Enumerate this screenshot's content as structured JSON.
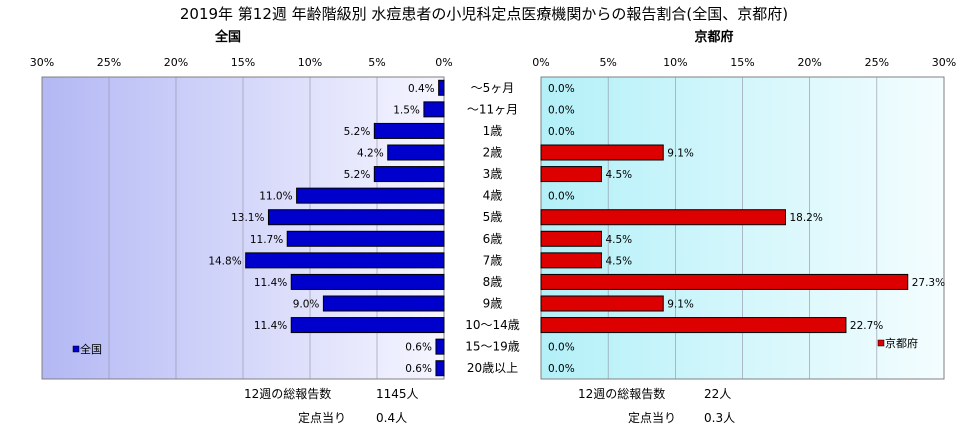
{
  "title": "2019年 第12週 年齢階級別 水痘患者の小児科定点医療機関からの報告割合(全国、京都府)",
  "chart_data": [
    {
      "type": "bar",
      "orientation": "horizontal",
      "direction": "right-to-left",
      "title": "全国",
      "series": [
        {
          "name": "全国",
          "values": [
            0.4,
            1.5,
            5.2,
            4.2,
            5.2,
            11.0,
            13.1,
            11.7,
            14.8,
            11.4,
            9.0,
            11.4,
            0.6,
            0.6
          ]
        }
      ],
      "labels": [
        "0.4%",
        "1.5%",
        "5.2%",
        "4.2%",
        "5.2%",
        "11.0%",
        "13.1%",
        "11.7%",
        "14.8%",
        "11.4%",
        "9.0%",
        "11.4%",
        "0.6%",
        "0.6%"
      ],
      "xlim": [
        0,
        30
      ],
      "xticks": [
        "30%",
        "25%",
        "20%",
        "15%",
        "10%",
        "5%",
        "0%"
      ],
      "color": "#0000cc",
      "legend_position": "bottom-left",
      "grid": true
    },
    {
      "type": "bar",
      "orientation": "horizontal",
      "direction": "left-to-right",
      "title": "京都府",
      "series": [
        {
          "name": "京都府",
          "values": [
            0.0,
            0.0,
            0.0,
            9.1,
            4.5,
            0.0,
            18.2,
            4.5,
            4.5,
            27.3,
            9.1,
            22.7,
            0.0,
            0.0
          ]
        }
      ],
      "labels": [
        "0.0%",
        "0.0%",
        "0.0%",
        "9.1%",
        "4.5%",
        "0.0%",
        "18.2%",
        "4.5%",
        "4.5%",
        "27.3%",
        "9.1%",
        "22.7%",
        "0.0%",
        "0.0%"
      ],
      "xlim": [
        0,
        30
      ],
      "xticks": [
        "0%",
        "5%",
        "10%",
        "15%",
        "20%",
        "25%",
        "30%"
      ],
      "color": "#dd0000",
      "legend_position": "bottom-right",
      "grid": true
    }
  ],
  "categories": [
    "～5ヶ月",
    "～11ヶ月",
    "1歳",
    "2歳",
    "3歳",
    "4歳",
    "5歳",
    "6歳",
    "7歳",
    "8歳",
    "9歳",
    "10～14歳",
    "15～19歳",
    "20歳以上"
  ],
  "footer": {
    "national": {
      "total_label": "12週の総報告数",
      "total_value": "1145人",
      "per_label": "定点当り",
      "per_value": "0.4人"
    },
    "kyoto": {
      "total_label": "12週の総報告数",
      "total_value": "22人",
      "per_label": "定点当り",
      "per_value": "0.3人"
    }
  },
  "colors": {
    "national_bar": "#0000cc",
    "kyoto_bar": "#dd0000"
  }
}
